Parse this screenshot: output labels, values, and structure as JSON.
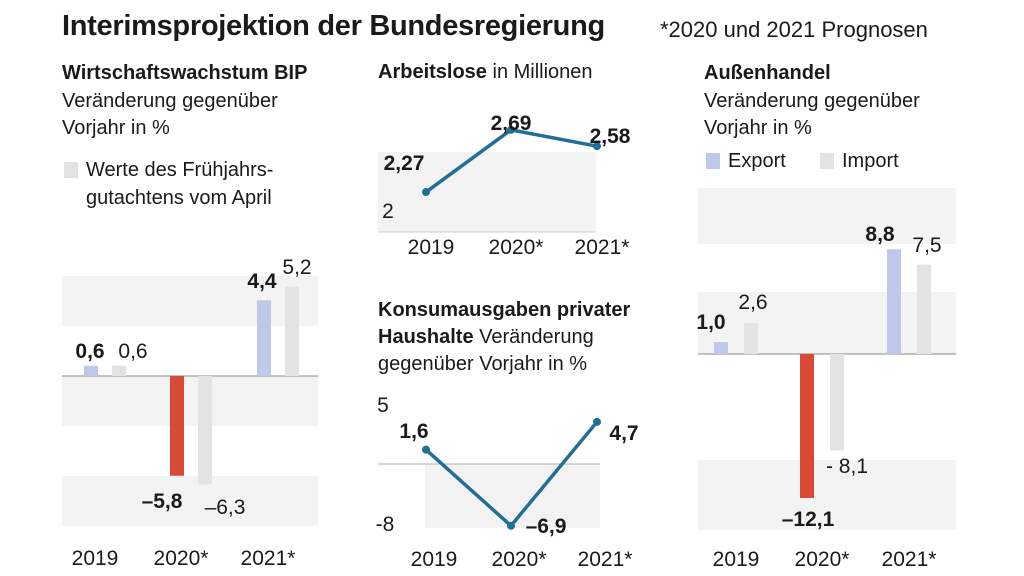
{
  "title": "Interimsprojektion der Bundesregierung",
  "note": "*2020 und 2021 Prognosen",
  "colors": {
    "accent": "#1f6f96",
    "negative": "#d84a35",
    "export": "#bdc9e8",
    "spring": "#e3e3e3",
    "band": "#f3f3f3",
    "axis": "#888888"
  },
  "gdp": {
    "title": "Wirtschaftswachstum BIP",
    "subtitle1": "Veränderung gegenüber",
    "subtitle2": "Vorjahr in %",
    "legend1": "Werte des Frühjahrs-",
    "legend2": "gutachtens vom April"
  },
  "unemp": {
    "title": "Arbeitslose",
    "unit": "in Millionen",
    "axis_min_label": "2"
  },
  "cons": {
    "title1": "Konsumausgaben privater",
    "title2": "Haushalte",
    "subtitle1": "Veränderung",
    "subtitle2": "gegenüber Vorjahr in %",
    "axis_max_label": "5",
    "axis_min_label": "-8"
  },
  "trade": {
    "title": "Außenhandel",
    "subtitle1": "Veränderung gegenüber",
    "subtitle2": "Vorjahr in %",
    "legend_export": "Export",
    "legend_import": "Import"
  },
  "chart_data": [
    {
      "id": "gdp",
      "type": "bar",
      "title": "Wirtschaftswachstum BIP",
      "categories": [
        "2019",
        "2020*",
        "2021*"
      ],
      "series": [
        {
          "name": "",
          "values": [
            0.6,
            -5.8,
            4.4
          ],
          "labels": [
            "0,6",
            "–5,8",
            "4,4"
          ]
        },
        {
          "name": "Werte des Frühjahrsgutachtens vom April",
          "values": [
            0.6,
            -6.3,
            5.2
          ],
          "labels": [
            "0,6",
            "–6,3",
            "5,2"
          ]
        }
      ]
    },
    {
      "id": "unemp",
      "type": "line",
      "title": "Arbeitslose in Millionen",
      "categories": [
        "2019",
        "2020*",
        "2021*"
      ],
      "values": [
        2.27,
        2.69,
        2.58
      ],
      "labels": [
        "2,27",
        "2,69",
        "2,58"
      ],
      "ylim": [
        2,
        2.8
      ]
    },
    {
      "id": "cons",
      "type": "line",
      "title": "Konsumausgaben privater Haushalte",
      "categories": [
        "2019",
        "2020*",
        "2021*"
      ],
      "values": [
        1.6,
        -6.9,
        4.7
      ],
      "labels": [
        "1,6",
        "–6,9",
        "4,7"
      ],
      "ylim": [
        -8,
        5
      ]
    },
    {
      "id": "trade",
      "type": "bar",
      "title": "Außenhandel",
      "categories": [
        "2019",
        "2020*",
        "2021*"
      ],
      "series": [
        {
          "name": "Export",
          "values": [
            1.0,
            -12.1,
            8.8
          ],
          "labels": [
            "1,0",
            "–12,1",
            "8,8"
          ]
        },
        {
          "name": "Import",
          "values": [
            2.6,
            -8.1,
            7.5
          ],
          "labels": [
            "2,6",
            "- 8,1",
            "7,5"
          ]
        }
      ]
    }
  ]
}
